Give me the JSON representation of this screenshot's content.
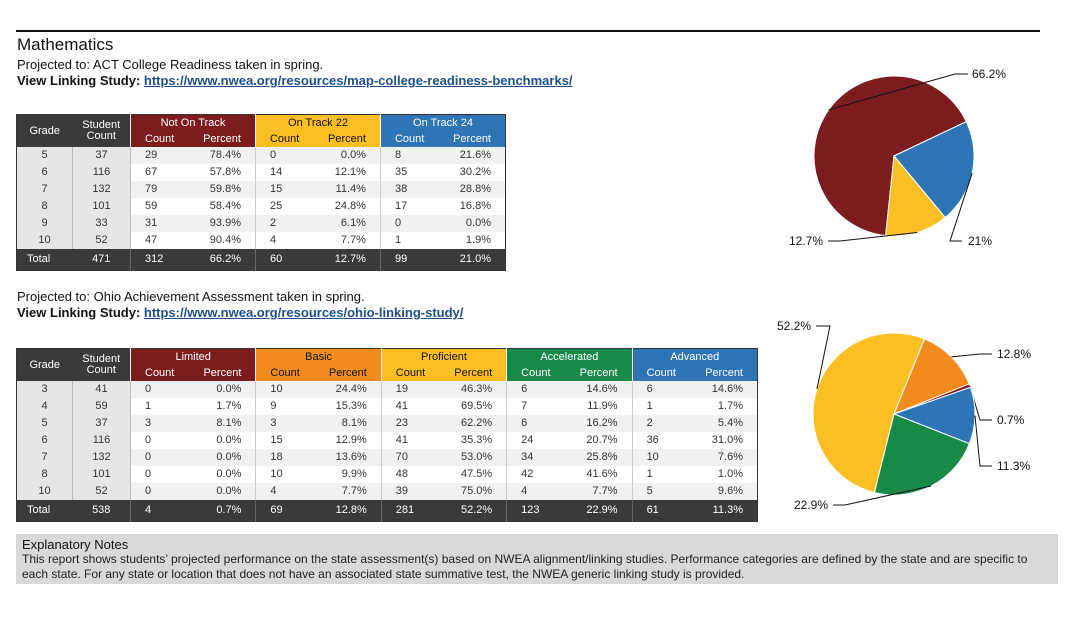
{
  "title": "Mathematics",
  "section1": {
    "projected_prefix": "Projected to: ",
    "projected": "ACT College Readiness taken in spring.",
    "link_prefix": "View Linking Study: ",
    "link": "https://www.nwea.org/resources/map-college-readiness-benchmarks/",
    "headers": {
      "grade": "Grade",
      "student_count": "Student Count",
      "count": "Count",
      "percent": "Percent"
    },
    "groups": [
      "Not On Track",
      "On Track 22",
      "On Track 24"
    ],
    "rows": [
      [
        "5",
        "37",
        "29",
        "78.4%",
        "0",
        "0.0%",
        "8",
        "21.6%"
      ],
      [
        "6",
        "116",
        "67",
        "57.8%",
        "14",
        "12.1%",
        "35",
        "30.2%"
      ],
      [
        "7",
        "132",
        "79",
        "59.8%",
        "15",
        "11.4%",
        "38",
        "28.8%"
      ],
      [
        "8",
        "101",
        "59",
        "58.4%",
        "25",
        "24.8%",
        "17",
        "16.8%"
      ],
      [
        "9",
        "33",
        "31",
        "93.9%",
        "2",
        "6.1%",
        "0",
        "0.0%"
      ],
      [
        "10",
        "52",
        "47",
        "90.4%",
        "4",
        "7.7%",
        "1",
        "1.9%"
      ]
    ],
    "total": [
      "Total",
      "471",
      "312",
      "66.2%",
      "60",
      "12.7%",
      "99",
      "21.0%"
    ]
  },
  "section2": {
    "projected_prefix": "Projected to: ",
    "projected": "Ohio Achievement Assessment taken in spring.",
    "link_prefix": "View Linking Study: ",
    "link": "https://www.nwea.org/resources/ohio-linking-study/",
    "headers": {
      "grade": "Grade",
      "student_count": "Student Count",
      "count": "Count",
      "percent": "Percent"
    },
    "groups": [
      "Limited",
      "Basic",
      "Proficient",
      "Accelerated",
      "Advanced"
    ],
    "rows": [
      [
        "3",
        "41",
        "0",
        "0.0%",
        "10",
        "24.4%",
        "19",
        "46.3%",
        "6",
        "14.6%",
        "6",
        "14.6%"
      ],
      [
        "4",
        "59",
        "1",
        "1.7%",
        "9",
        "15.3%",
        "41",
        "69.5%",
        "7",
        "11.9%",
        "1",
        "1.7%"
      ],
      [
        "5",
        "37",
        "3",
        "8.1%",
        "3",
        "8.1%",
        "23",
        "62.2%",
        "6",
        "16.2%",
        "2",
        "5.4%"
      ],
      [
        "6",
        "116",
        "0",
        "0.0%",
        "15",
        "12.9%",
        "41",
        "35.3%",
        "24",
        "20.7%",
        "36",
        "31.0%"
      ],
      [
        "7",
        "132",
        "0",
        "0.0%",
        "18",
        "13.6%",
        "70",
        "53.0%",
        "34",
        "25.8%",
        "10",
        "7.6%"
      ],
      [
        "8",
        "101",
        "0",
        "0.0%",
        "10",
        "9.9%",
        "48",
        "47.5%",
        "42",
        "41.6%",
        "1",
        "1.0%"
      ],
      [
        "10",
        "52",
        "0",
        "0.0%",
        "4",
        "7.7%",
        "39",
        "75.0%",
        "4",
        "7.7%",
        "5",
        "9.6%"
      ]
    ],
    "total": [
      "Total",
      "538",
      "4",
      "0.7%",
      "69",
      "12.8%",
      "281",
      "52.2%",
      "123",
      "22.9%",
      "61",
      "11.3%"
    ]
  },
  "chart_data": [
    {
      "type": "pie",
      "title": "",
      "slices": [
        {
          "value": 66.2,
          "label": "66.2%",
          "color": "#7c1c1f"
        },
        {
          "value": 21.0,
          "label": "21%",
          "color": "#2e75b6"
        },
        {
          "value": 12.7,
          "label": "12.7%",
          "color": "#fbbf24"
        }
      ]
    },
    {
      "type": "pie",
      "title": "",
      "slices": [
        {
          "value": 52.2,
          "label": "52.2%",
          "color": "#fbbf24"
        },
        {
          "value": 12.8,
          "label": "12.8%",
          "color": "#f28c1f"
        },
        {
          "value": 0.7,
          "label": "0.7%",
          "color": "#7c1c1f"
        },
        {
          "value": 11.3,
          "label": "11.3%",
          "color": "#2e75b6"
        },
        {
          "value": 22.9,
          "label": "22.9%",
          "color": "#168a46"
        }
      ]
    }
  ],
  "notes": {
    "title": "Explanatory Notes",
    "body": "This report shows students’ projected performance on the state assessment(s) based on NWEA alignment/linking studies. Performance categories are defined by the state and are specific to each state. For any state or location that does not have an associated state summative test, the NWEA generic linking study is provided."
  }
}
